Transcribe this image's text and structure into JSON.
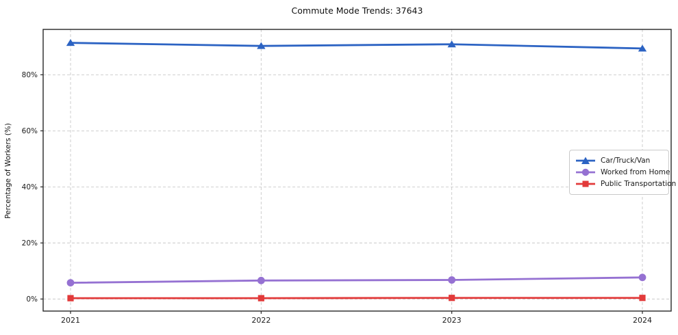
{
  "title": "Commute Mode Trends: 37643",
  "y_axis_label": "Percentage of Workers (%)",
  "chart_data": {
    "type": "line",
    "title": "Commute Mode Trends: 37643",
    "xlabel": "",
    "ylabel": "Percentage of Workers (%)",
    "categories": [
      "2021",
      "2022",
      "2023",
      "2024"
    ],
    "series": [
      {
        "name": "Car/Truck/Van",
        "values": [
          91.4,
          90.3,
          90.9,
          89.4
        ],
        "color": "#2c63c3",
        "marker": "triangle"
      },
      {
        "name": "Worked from Home",
        "values": [
          5.8,
          6.6,
          6.8,
          7.7
        ],
        "color": "#9571d2",
        "marker": "circle"
      },
      {
        "name": "Public Transportation",
        "values": [
          0.3,
          0.3,
          0.4,
          0.4
        ],
        "color": "#e23a3a",
        "marker": "square"
      }
    ],
    "yticks": [
      0,
      20,
      40,
      60,
      80
    ],
    "ytick_labels": [
      "0%",
      "20%",
      "40%",
      "60%",
      "80%"
    ],
    "ylim": [
      -4.3,
      96.2
    ],
    "grid": true,
    "grid_style": "dashed",
    "legend_position": "center-right"
  },
  "colors": {
    "grid": "#c9c9c9",
    "spine": "#262626",
    "background": "#ffffff",
    "tick_text": "#1a1a1a"
  }
}
